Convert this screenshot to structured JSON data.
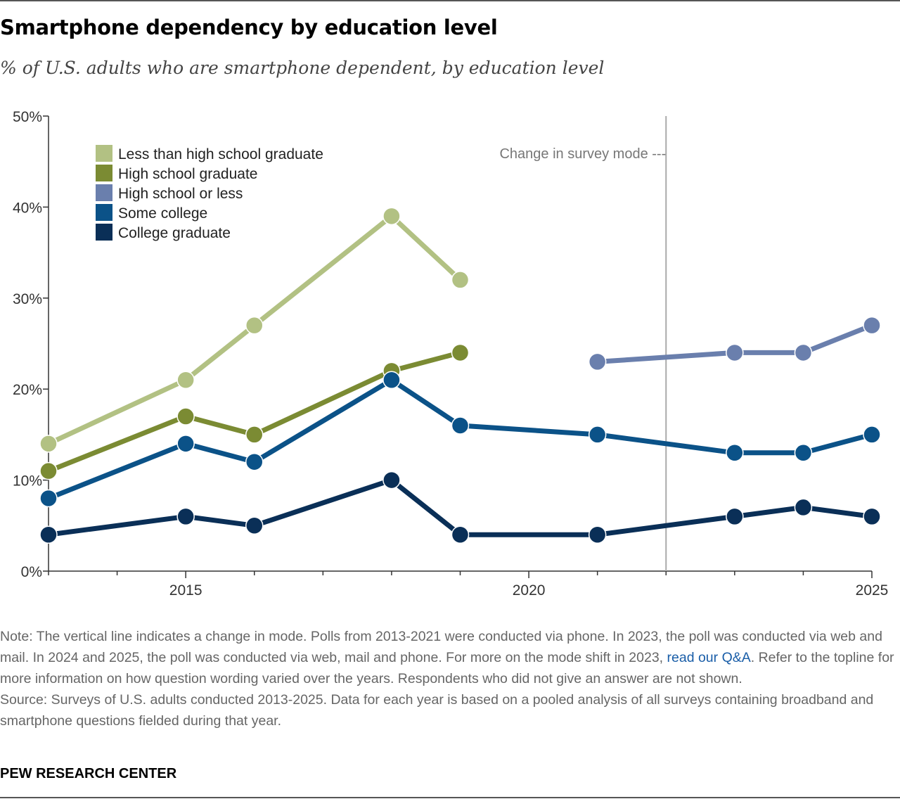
{
  "title": "Smartphone dependency by education level",
  "subtitle": "% of U.S. adults who are smartphone dependent, by education level",
  "mode_change_label": "Change in survey mode ---",
  "note": {
    "before_link": "Note: The vertical line indicates a change in mode. Polls from 2013-2021 were conducted via phone. In 2023, the poll was conducted via web and mail. In 2024 and 2025, the poll was conducted via web, mail and phone. For more on the mode shift in 2023,",
    "link_text": "read our Q&A",
    "after_link": ". Refer to the topline for more information on how question wording varied over the years. Respondents who did not give an answer are not shown."
  },
  "source": "Source: Surveys of U.S. adults conducted 2013-2025. Data for each year is based on a pooled analysis of all surveys containing broadband and smartphone questions fielded during that year.",
  "brand": "PEW RESEARCH CENTER",
  "colors": {
    "less_than_hs": "#b2c183",
    "hs_grad": "#7b8b33",
    "hs_or_less": "#6a7fad",
    "some_college": "#0b5288",
    "college_grad": "#0a2f57",
    "mode_line": "#aaaaaa",
    "link": "#1a5ea8"
  },
  "chart_data": {
    "type": "line",
    "title": "Smartphone dependency by education level",
    "xlabel": "",
    "ylabel": "",
    "xlim": [
      2013,
      2025
    ],
    "ylim": [
      0,
      50
    ],
    "x_ticks": [
      2015,
      2020,
      2025
    ],
    "y_ticks": [
      0,
      10,
      20,
      30,
      40,
      50
    ],
    "y_tick_labels": [
      "0%",
      "10%",
      "20%",
      "30%",
      "40%",
      "50%"
    ],
    "mode_change_x": 2022,
    "legend_position": "top-left",
    "grid": false,
    "series": [
      {
        "name": "Less than high school graduate",
        "color": "#b2c183",
        "points": [
          [
            2013,
            14
          ],
          [
            2015,
            21
          ],
          [
            2016,
            27
          ],
          [
            2018,
            39
          ],
          [
            2019,
            32
          ]
        ]
      },
      {
        "name": "High school graduate",
        "color": "#7b8b33",
        "points": [
          [
            2013,
            11
          ],
          [
            2015,
            17
          ],
          [
            2016,
            15
          ],
          [
            2018,
            22
          ],
          [
            2019,
            24
          ]
        ]
      },
      {
        "name": "High school or less",
        "color": "#6a7fad",
        "points": [
          [
            2021,
            23
          ],
          [
            2023,
            24
          ],
          [
            2024,
            24
          ],
          [
            2025,
            27
          ]
        ]
      },
      {
        "name": "Some college",
        "color": "#0b5288",
        "points": [
          [
            2013,
            8
          ],
          [
            2015,
            14
          ],
          [
            2016,
            12
          ],
          [
            2018,
            21
          ],
          [
            2019,
            16
          ],
          [
            2021,
            15
          ],
          [
            2023,
            13
          ],
          [
            2024,
            13
          ],
          [
            2025,
            15
          ]
        ]
      },
      {
        "name": "College graduate",
        "color": "#0a2f57",
        "points": [
          [
            2013,
            4
          ],
          [
            2015,
            6
          ],
          [
            2016,
            5
          ],
          [
            2018,
            10
          ],
          [
            2019,
            4
          ],
          [
            2021,
            4
          ],
          [
            2023,
            6
          ],
          [
            2024,
            7
          ],
          [
            2025,
            6
          ]
        ]
      }
    ]
  }
}
